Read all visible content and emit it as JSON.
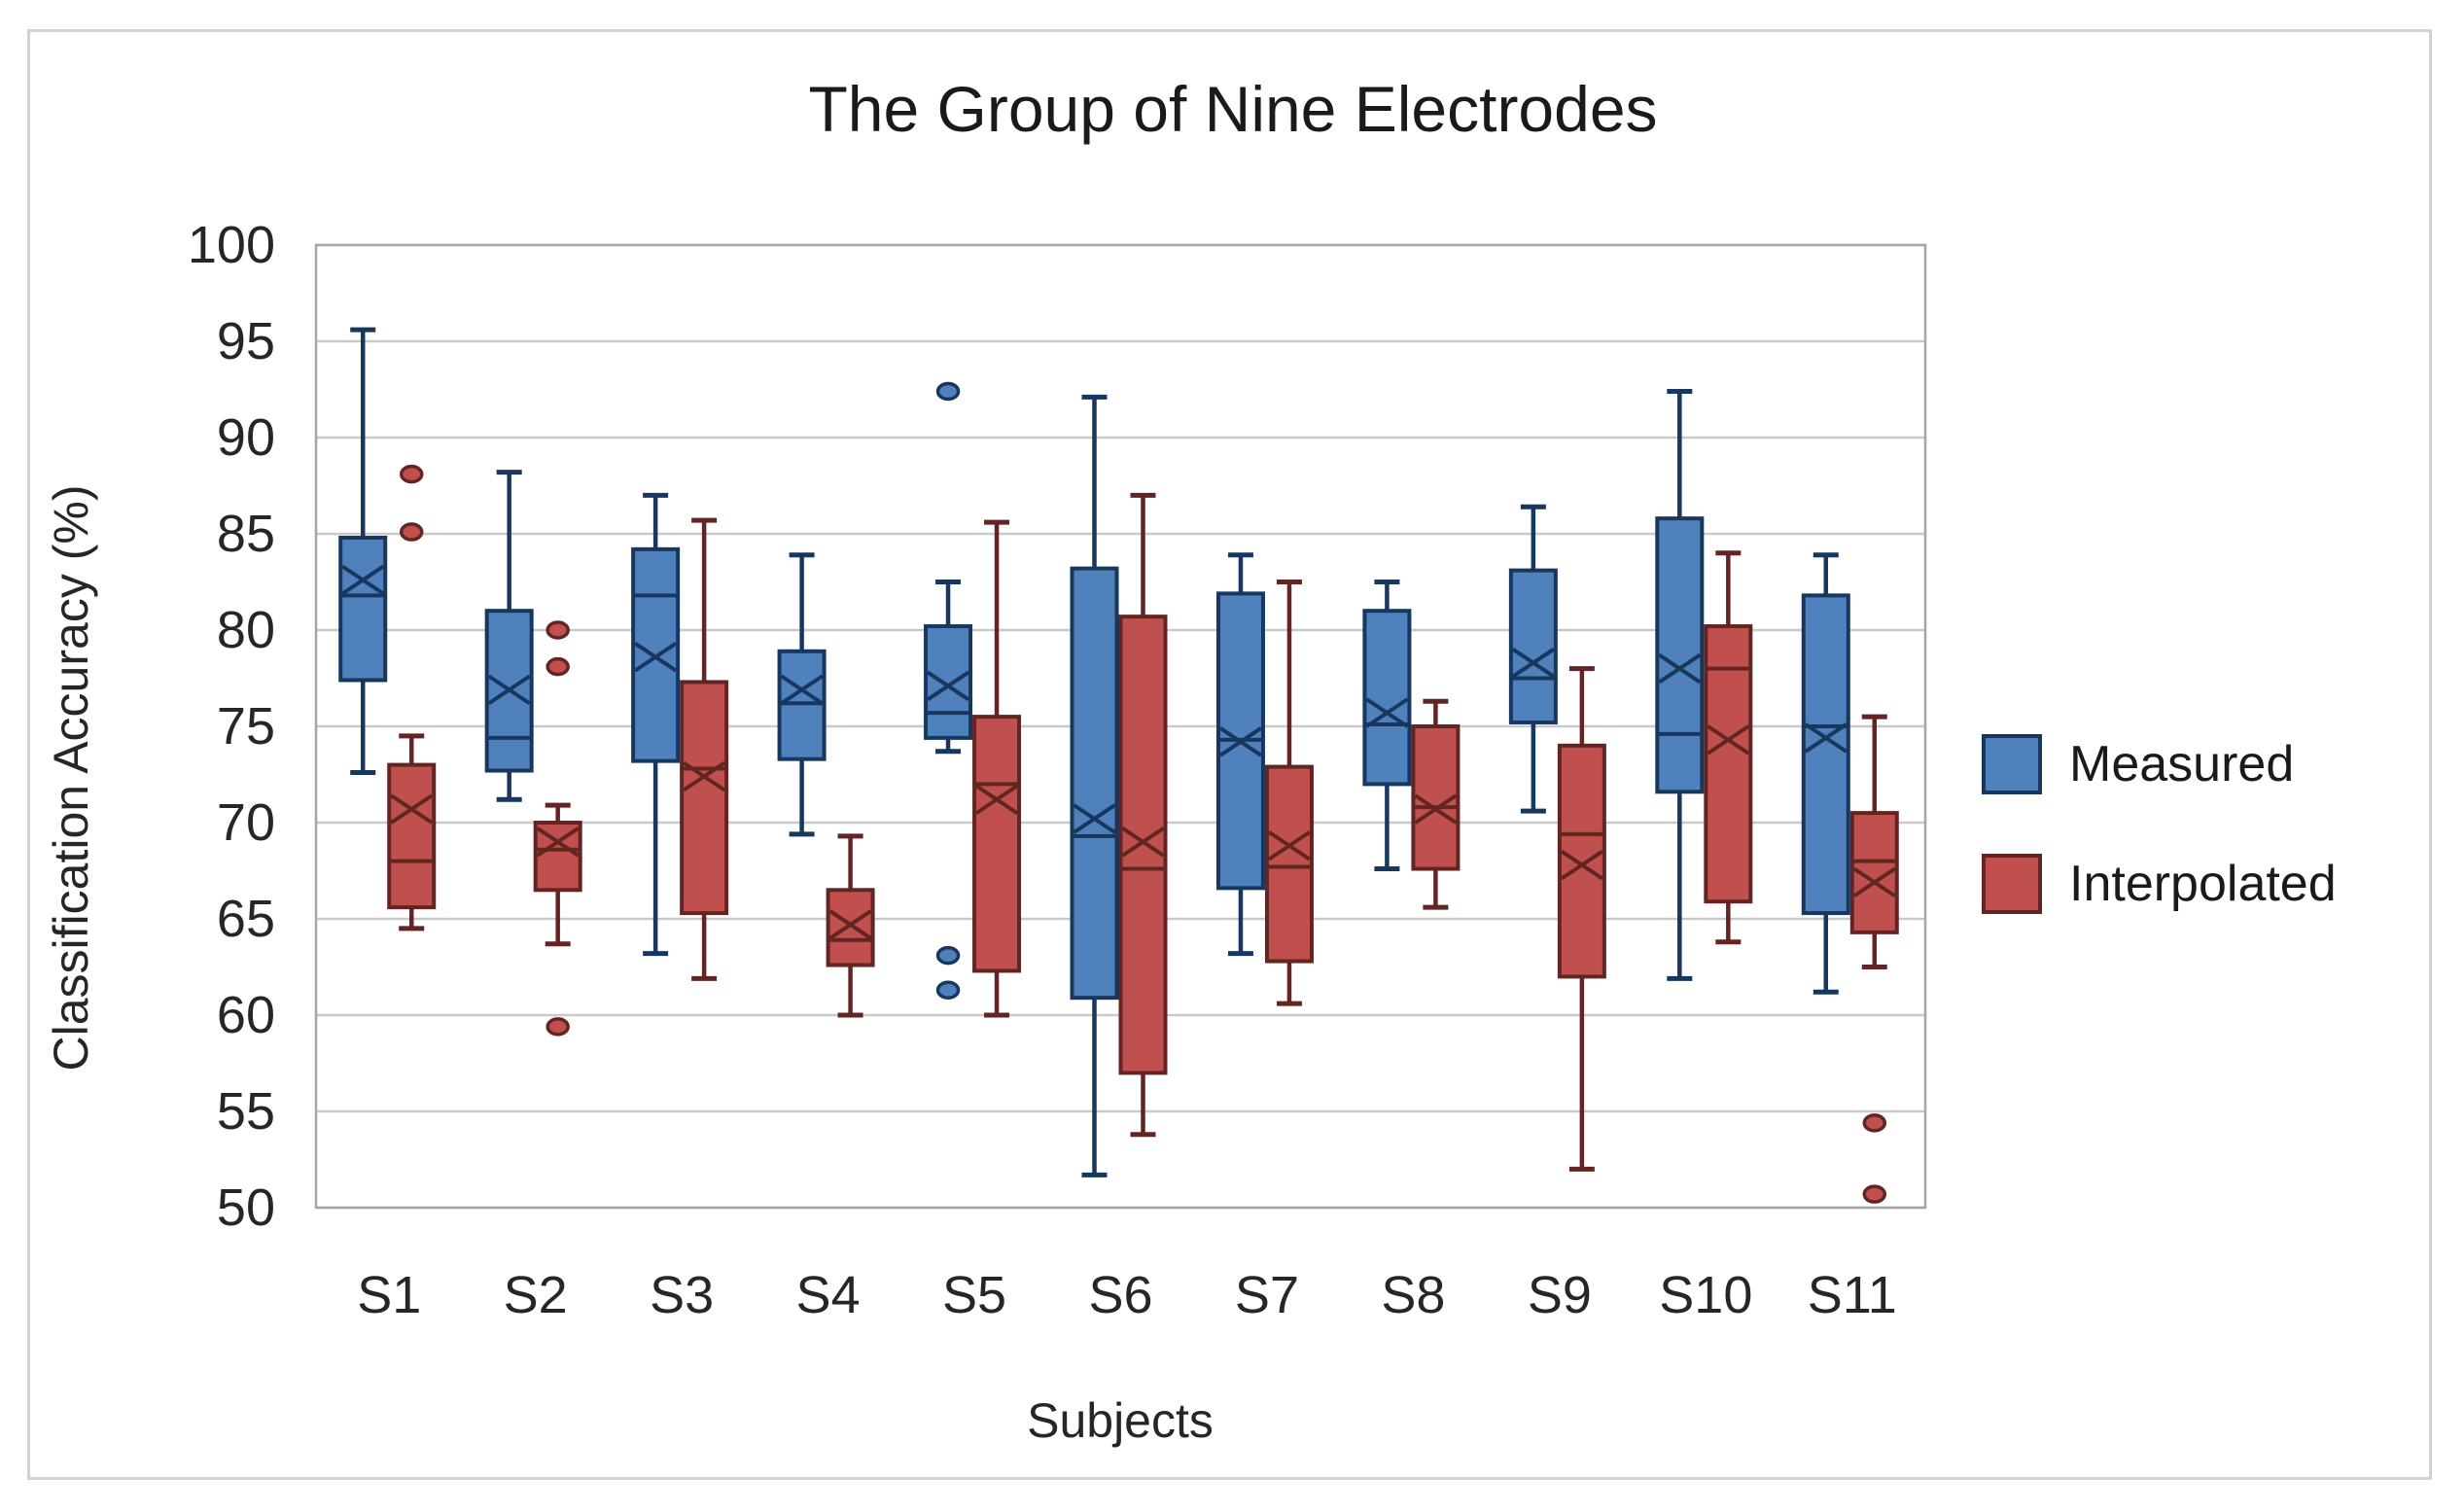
{
  "figure": {
    "title": "The Group of Nine Electrodes",
    "x_axis_title": "Subjects",
    "y_axis_title": "Classification Accuracy (%)"
  },
  "legend": {
    "position": "right",
    "items": [
      {
        "label": "Measured",
        "color": "#4f81bd",
        "edge": "#17375e"
      },
      {
        "label": "Interpolated",
        "color": "#c0504d",
        "edge": "#632523"
      }
    ]
  },
  "chart_data": {
    "type": "boxplot",
    "title": "The Group of Nine Electrodes",
    "xlabel": "Subjects",
    "ylabel": "Classification Accuracy (%)",
    "ylim": [
      50,
      100
    ],
    "ytick_step": 5,
    "yticks": [
      50,
      55,
      60,
      65,
      70,
      75,
      80,
      85,
      90,
      95,
      100
    ],
    "grid": true,
    "legend_position": "right",
    "categories": [
      "S1",
      "S2",
      "S3",
      "S4",
      "S5",
      "S6",
      "S7",
      "S8",
      "S9",
      "S10",
      "S11"
    ],
    "series": [
      {
        "name": "Measured",
        "color": "#4f81bd",
        "edge": "#17375e",
        "boxes": [
          {
            "whislo": 72.6,
            "q1": 77.4,
            "med": 81.8,
            "q3": 84.8,
            "whishi": 95.6,
            "mean": 82.6,
            "outliers": []
          },
          {
            "whislo": 71.2,
            "q1": 72.7,
            "med": 74.4,
            "q3": 81.0,
            "whishi": 88.2,
            "mean": 76.9,
            "outliers": []
          },
          {
            "whislo": 63.2,
            "q1": 73.2,
            "med": 81.8,
            "q3": 84.2,
            "whishi": 87.0,
            "mean": 78.6,
            "outliers": []
          },
          {
            "whislo": 69.4,
            "q1": 73.3,
            "med": 76.2,
            "q3": 78.9,
            "whishi": 83.9,
            "mean": 76.9,
            "outliers": []
          },
          {
            "whislo": 73.7,
            "q1": 74.4,
            "med": 75.7,
            "q3": 80.2,
            "whishi": 82.5,
            "mean": 77.1,
            "outliers": [
              92.4,
              63.1,
              61.3
            ]
          },
          {
            "whislo": 51.7,
            "q1": 60.9,
            "med": 69.3,
            "q3": 83.2,
            "whishi": 92.1,
            "mean": 70.2,
            "outliers": []
          },
          {
            "whislo": 63.2,
            "q1": 66.6,
            "med": 74.3,
            "q3": 81.9,
            "whishi": 83.9,
            "mean": 74.2,
            "outliers": []
          },
          {
            "whislo": 67.6,
            "q1": 72.0,
            "med": 75.1,
            "q3": 81.0,
            "whishi": 82.5,
            "mean": 75.7,
            "outliers": []
          },
          {
            "whislo": 70.6,
            "q1": 75.2,
            "med": 77.5,
            "q3": 83.1,
            "whishi": 86.4,
            "mean": 78.3,
            "outliers": []
          },
          {
            "whislo": 61.9,
            "q1": 71.6,
            "med": 74.6,
            "q3": 85.8,
            "whishi": 92.4,
            "mean": 78.0,
            "outliers": []
          },
          {
            "whislo": 61.2,
            "q1": 65.3,
            "med": 75.0,
            "q3": 81.8,
            "whishi": 83.9,
            "mean": 74.4,
            "outliers": []
          }
        ]
      },
      {
        "name": "Interpolated",
        "color": "#c0504d",
        "edge": "#632523",
        "boxes": [
          {
            "whislo": 64.5,
            "q1": 65.6,
            "med": 68.0,
            "q3": 73.0,
            "whishi": 74.5,
            "mean": 70.7,
            "outliers": [
              88.1,
              85.1
            ]
          },
          {
            "whislo": 63.7,
            "q1": 66.5,
            "med": 68.6,
            "q3": 70.0,
            "whishi": 70.9,
            "mean": 69.0,
            "outliers": [
              80.0,
              78.1,
              59.4
            ]
          },
          {
            "whislo": 61.9,
            "q1": 65.3,
            "med": 72.8,
            "q3": 77.3,
            "whishi": 85.7,
            "mean": 72.4,
            "outliers": []
          },
          {
            "whislo": 60.0,
            "q1": 62.6,
            "med": 63.9,
            "q3": 66.5,
            "whishi": 69.3,
            "mean": 64.7,
            "outliers": []
          },
          {
            "whislo": 60.0,
            "q1": 62.3,
            "med": 72.0,
            "q3": 75.5,
            "whishi": 85.6,
            "mean": 71.2,
            "outliers": []
          },
          {
            "whislo": 53.8,
            "q1": 57.0,
            "med": 67.6,
            "q3": 80.7,
            "whishi": 87.0,
            "mean": 69.0,
            "outliers": []
          },
          {
            "whislo": 60.6,
            "q1": 62.8,
            "med": 67.7,
            "q3": 72.9,
            "whishi": 82.5,
            "mean": 68.8,
            "outliers": []
          },
          {
            "whislo": 65.6,
            "q1": 67.6,
            "med": 70.8,
            "q3": 75.0,
            "whishi": 76.3,
            "mean": 70.7,
            "outliers": []
          },
          {
            "whislo": 52.0,
            "q1": 62.0,
            "med": 69.4,
            "q3": 74.0,
            "whishi": 78.0,
            "mean": 67.8,
            "outliers": []
          },
          {
            "whislo": 63.8,
            "q1": 65.9,
            "med": 78.0,
            "q3": 80.2,
            "whishi": 84.0,
            "mean": 74.3,
            "outliers": []
          },
          {
            "whislo": 62.5,
            "q1": 64.3,
            "med": 68.0,
            "q3": 70.5,
            "whishi": 75.5,
            "mean": 66.9,
            "outliers": [
              54.4,
              50.7
            ]
          }
        ]
      }
    ]
  }
}
